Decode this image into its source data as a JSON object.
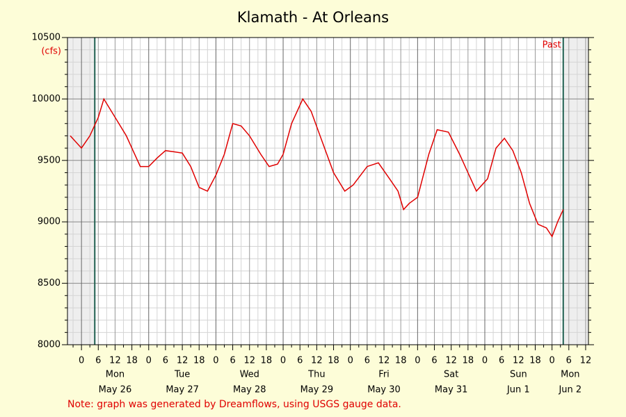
{
  "chart_data": {
    "type": "line",
    "title": "Klamath - At Orleans",
    "y_unit": "(cfs)",
    "note": "Note: graph was generated by Dreamflows, using USGS gauge data.",
    "marker_label": "Past",
    "color": "#e00000",
    "x": [
      -4,
      0,
      3,
      6,
      8,
      12,
      16,
      18,
      21,
      24,
      27,
      30,
      33,
      36,
      39,
      42,
      45,
      48,
      51,
      54,
      57,
      60,
      64,
      67,
      70,
      72,
      75,
      79,
      82,
      86,
      90,
      94,
      97,
      102,
      106,
      110,
      113,
      115,
      117,
      120,
      124,
      127,
      131,
      135,
      138,
      141,
      145,
      148,
      151,
      154,
      157,
      160,
      163,
      166,
      168,
      170,
      172
    ],
    "values": [
      9700,
      9600,
      9700,
      9850,
      10000,
      9850,
      9700,
      9600,
      9450,
      9450,
      9520,
      9580,
      9570,
      9560,
      9450,
      9280,
      9250,
      9380,
      9550,
      9800,
      9780,
      9700,
      9550,
      9450,
      9470,
      9550,
      9800,
      10000,
      9900,
      9650,
      9400,
      9250,
      9300,
      9450,
      9480,
      9350,
      9250,
      9100,
      9150,
      9200,
      9550,
      9750,
      9730,
      9550,
      9400,
      9250,
      9350,
      9600,
      9680,
      9580,
      9400,
      9150,
      8980,
      8950,
      8880,
      9000,
      9100
    ],
    "vlines": [
      4.75,
      172
    ],
    "xlim": [
      -5,
      181
    ],
    "xticks": [
      0,
      6,
      12,
      18,
      {
        "value": 24,
        "label": "0"
      },
      {
        "value": 30,
        "label": "6"
      },
      {
        "value": 36,
        "label": "12"
      },
      {
        "value": 42,
        "label": "18"
      },
      {
        "value": 48,
        "label": "0"
      },
      {
        "value": 54,
        "label": "6"
      },
      {
        "value": 60,
        "label": "12"
      },
      {
        "value": 66,
        "label": "18"
      },
      {
        "value": 72,
        "label": "0"
      },
      {
        "value": 78,
        "label": "6"
      },
      {
        "value": 84,
        "label": "12"
      },
      {
        "value": 90,
        "label": "18"
      },
      {
        "value": 96,
        "label": "0"
      },
      {
        "value": 102,
        "label": "6"
      },
      {
        "value": 108,
        "label": "12"
      },
      {
        "value": 114,
        "label": "18"
      },
      {
        "value": 120,
        "label": "0"
      },
      {
        "value": 126,
        "label": "6"
      },
      {
        "value": 132,
        "label": "12"
      },
      {
        "value": 138,
        "label": "18"
      },
      {
        "value": 144,
        "label": "0"
      },
      {
        "value": 150,
        "label": "6"
      },
      {
        "value": 156,
        "label": "12"
      },
      {
        "value": 162,
        "label": "18"
      },
      {
        "value": 168,
        "label": "0"
      },
      {
        "value": 174,
        "label": "6"
      },
      {
        "value": 180,
        "label": "12"
      }
    ],
    "days": [
      {
        "weekday": "Mon",
        "date": "May 26"
      },
      {
        "weekday": "Tue",
        "date": "May 27"
      },
      {
        "weekday": "Wed",
        "date": "May 28"
      },
      {
        "weekday": "Thu",
        "date": "May 29"
      },
      {
        "weekday": "Fri",
        "date": "May 30"
      },
      {
        "weekday": "Sat",
        "date": "May 31"
      },
      {
        "weekday": "Sun",
        "date": "Jun 1"
      },
      {
        "weekday": "Mon",
        "date": "Jun 2"
      }
    ],
    "ylim": [
      8000,
      10500
    ],
    "yticks": [
      8000,
      8500,
      9000,
      9500,
      10000,
      10500
    ],
    "grid": true
  }
}
